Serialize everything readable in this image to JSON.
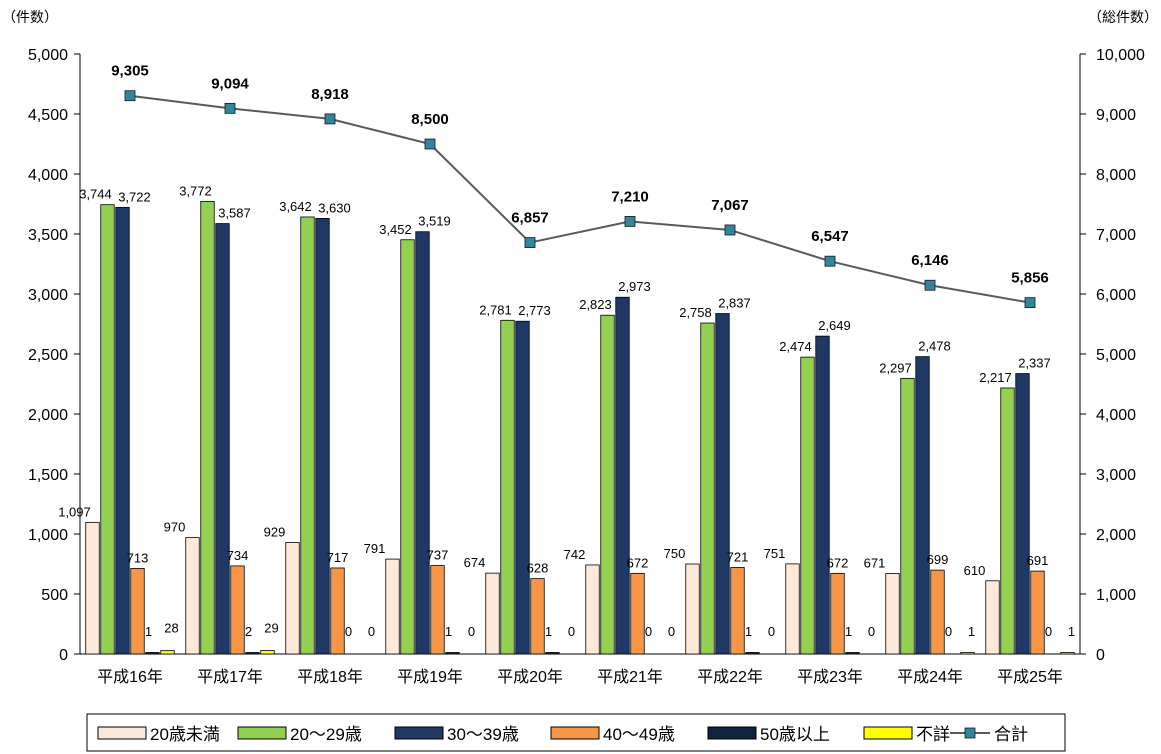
{
  "chart_data": {
    "type": "bar",
    "categories": [
      "平成16年",
      "平成17年",
      "平成18年",
      "平成19年",
      "平成20年",
      "平成21年",
      "平成22年",
      "平成23年",
      "平成24年",
      "平成25年"
    ],
    "y_left_unit": "（件数）",
    "y_right_unit": "（総件数）",
    "ylim_left": [
      0,
      5000
    ],
    "ylim_right": [
      0,
      10000
    ],
    "yticks_left": [
      "0",
      "500",
      "1,000",
      "1,500",
      "2,000",
      "2,500",
      "3,000",
      "3,500",
      "4,000",
      "4,500",
      "5,000"
    ],
    "yticks_right": [
      "0",
      "1,000",
      "2,000",
      "3,000",
      "4,000",
      "5,000",
      "6,000",
      "7,000",
      "8,000",
      "9,000",
      "10,000"
    ],
    "series": [
      {
        "name": "20歳未満",
        "color": "#FDE9D9",
        "values": [
          1097,
          970,
          929,
          791,
          674,
          742,
          750,
          751,
          671,
          610
        ],
        "labels": [
          "1,097",
          "970",
          "929",
          "791",
          "674",
          "742",
          "750",
          "751",
          "671",
          "610"
        ]
      },
      {
        "name": "20～29歳",
        "color": "#92D050",
        "values": [
          3744,
          3772,
          3642,
          3452,
          2781,
          2823,
          2758,
          2474,
          2297,
          2217
        ],
        "labels": [
          "3,744",
          "3,772",
          "3,642",
          "3,452",
          "2,781",
          "2,823",
          "2,758",
          "2,474",
          "2,297",
          "2,217"
        ]
      },
      {
        "name": "30～39歳",
        "color": "#1F3864",
        "values": [
          3722,
          3587,
          3630,
          3519,
          2773,
          2973,
          2837,
          2649,
          2478,
          2337
        ],
        "labels": [
          "3,722",
          "3,587",
          "3,630",
          "3,519",
          "2,773",
          "2,973",
          "2,837",
          "2,649",
          "2,478",
          "2,337"
        ]
      },
      {
        "name": "40～49歳",
        "color": "#F79646",
        "values": [
          713,
          734,
          717,
          737,
          628,
          672,
          721,
          672,
          699,
          691
        ],
        "labels": [
          "713",
          "734",
          "717",
          "737",
          "628",
          "672",
          "721",
          "672",
          "699",
          "691"
        ]
      },
      {
        "name": "50歳以上",
        "color": "#0F243E",
        "values": [
          1,
          2,
          0,
          1,
          1,
          0,
          1,
          1,
          0,
          0
        ],
        "labels": [
          "1",
          "2",
          "0",
          "1",
          "1",
          "0",
          "1",
          "1",
          "0",
          "0"
        ]
      },
      {
        "name": "不詳",
        "color": "#FFFF00",
        "values": [
          28,
          29,
          0,
          0,
          0,
          0,
          0,
          0,
          1,
          1
        ],
        "labels": [
          "28",
          "29",
          "0",
          "0",
          "0",
          "0",
          "0",
          "0",
          "1",
          "1"
        ]
      }
    ],
    "line_series": {
      "name": "合計",
      "axis": "right",
      "color": "#595959",
      "marker_color": "#31859C",
      "values": [
        9305,
        9094,
        8918,
        8500,
        6857,
        7210,
        7067,
        6547,
        6146,
        5856
      ],
      "labels": [
        "9,305",
        "9,094",
        "8,918",
        "8,500",
        "6,857",
        "7,210",
        "7,067",
        "6,547",
        "6,146",
        "5,856"
      ]
    },
    "legend_position": "bottom"
  }
}
